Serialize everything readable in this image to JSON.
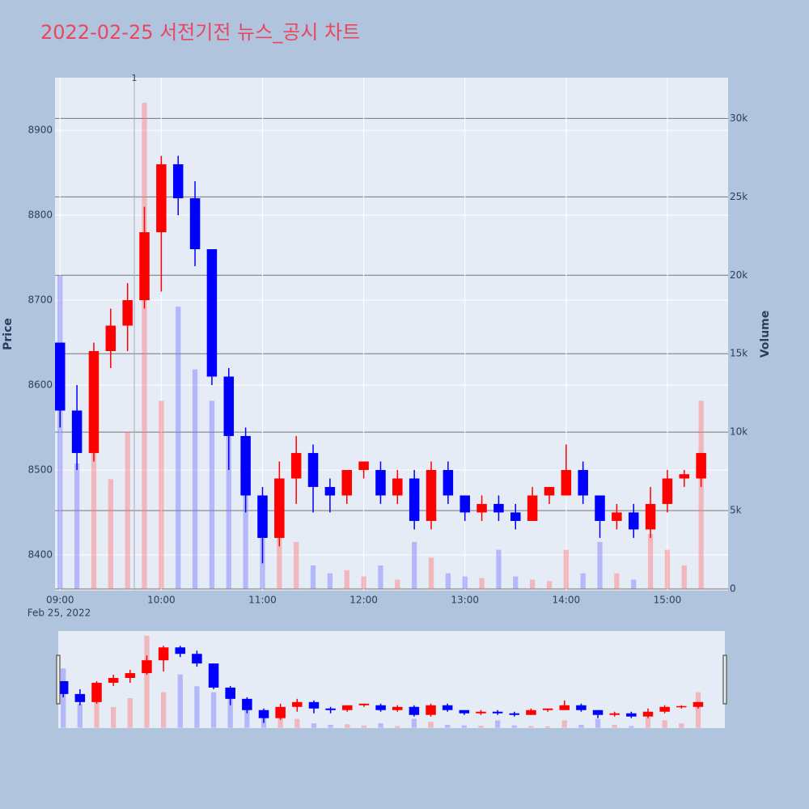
{
  "chart_data": {
    "type": "candlestick",
    "title": "2022-02-25 서전기전 뉴스_공시 차트",
    "title_color": "#e8475f",
    "x": [
      "2022-02-25 09:00",
      "2022-02-25 09:10",
      "2022-02-25 09:20",
      "2022-02-25 09:30",
      "2022-02-25 09:40",
      "2022-02-25 09:50",
      "2022-02-25 10:00",
      "2022-02-25 10:10",
      "2022-02-25 10:20",
      "2022-02-25 10:30",
      "2022-02-25 10:40",
      "2022-02-25 10:50",
      "2022-02-25 11:00",
      "2022-02-25 11:10",
      "2022-02-25 11:20",
      "2022-02-25 11:30",
      "2022-02-25 11:40",
      "2022-02-25 11:50",
      "2022-02-25 12:00",
      "2022-02-25 12:10",
      "2022-02-25 12:20",
      "2022-02-25 12:30",
      "2022-02-25 12:40",
      "2022-02-25 12:50",
      "2022-02-25 13:00",
      "2022-02-25 13:10",
      "2022-02-25 13:20",
      "2022-02-25 13:30",
      "2022-02-25 13:40",
      "2022-02-25 13:50",
      "2022-02-25 14:00",
      "2022-02-25 14:10",
      "2022-02-25 14:20",
      "2022-02-25 14:30",
      "2022-02-25 14:40",
      "2022-02-25 14:50",
      "2022-02-25 15:00",
      "2022-02-25 15:10",
      "2022-02-25 15:20"
    ],
    "open": [
      8650,
      8570,
      8520,
      8640,
      8670,
      8700,
      8780,
      8860,
      8820,
      8760,
      8610,
      8540,
      8470,
      8420,
      8490,
      8520,
      8480,
      8470,
      8500,
      8500,
      8470,
      8490,
      8440,
      8500,
      8470,
      8450,
      8460,
      8450,
      8440,
      8470,
      8470,
      8500,
      8470,
      8440,
      8450,
      8430,
      8460,
      8490,
      8490
    ],
    "high": [
      8650,
      8600,
      8650,
      8690,
      8720,
      8810,
      8870,
      8870,
      8840,
      8760,
      8620,
      8550,
      8480,
      8510,
      8540,
      8530,
      8490,
      8500,
      8510,
      8510,
      8500,
      8500,
      8510,
      8510,
      8470,
      8470,
      8470,
      8460,
      8480,
      8480,
      8530,
      8510,
      8470,
      8460,
      8460,
      8480,
      8500,
      8500,
      8520
    ],
    "low": [
      8550,
      8500,
      8510,
      8620,
      8640,
      8690,
      8710,
      8800,
      8740,
      8600,
      8500,
      8450,
      8390,
      8410,
      8460,
      8450,
      8450,
      8460,
      8490,
      8460,
      8460,
      8430,
      8430,
      8460,
      8440,
      8440,
      8440,
      8430,
      8440,
      8460,
      8470,
      8460,
      8420,
      8430,
      8420,
      8420,
      8450,
      8480,
      8480
    ],
    "close": [
      8570,
      8520,
      8640,
      8670,
      8700,
      8780,
      8860,
      8820,
      8760,
      8610,
      8540,
      8470,
      8420,
      8490,
      8520,
      8480,
      8470,
      8500,
      8510,
      8470,
      8490,
      8440,
      8500,
      8470,
      8450,
      8460,
      8450,
      8440,
      8470,
      8480,
      8500,
      8470,
      8440,
      8450,
      8430,
      8460,
      8490,
      8495,
      8520
    ],
    "volume": [
      20000,
      8000,
      9000,
      7000,
      10000,
      31000,
      12000,
      18000,
      14000,
      12000,
      11000,
      9000,
      5000,
      4000,
      3000,
      1500,
      1000,
      1200,
      800,
      1500,
      600,
      3000,
      2000,
      1000,
      800,
      700,
      2500,
      800,
      600,
      500,
      2500,
      1000,
      3000,
      1000,
      600,
      3500,
      2500,
      1500,
      12000
    ],
    "up_color": "#ff0000",
    "down_color": "#0000ff",
    "volume_up_color": "rgba(255,120,120,0.45)",
    "volume_down_color": "rgba(120,120,255,0.45)",
    "xlim": [
      "2022-02-25 08:57",
      "2022-02-25 15:36"
    ],
    "xticks": [
      {
        "value": "2022-02-25 09:00",
        "label": "09:00"
      },
      {
        "value": "2022-02-25 10:00",
        "label": "10:00"
      },
      {
        "value": "2022-02-25 11:00",
        "label": "11:00"
      },
      {
        "value": "2022-02-25 12:00",
        "label": "12:00"
      },
      {
        "value": "2022-02-25 13:00",
        "label": "13:00"
      },
      {
        "value": "2022-02-25 14:00",
        "label": "14:00"
      },
      {
        "value": "2022-02-25 15:00",
        "label": "15:00"
      }
    ],
    "x_date_label": "Feb 25, 2022",
    "ylim": [
      8358,
      8962
    ],
    "yticks": [
      8400,
      8500,
      8600,
      8700,
      8800,
      8900
    ],
    "y2lim": [
      -100,
      32600
    ],
    "y2ticks": [
      0,
      {
        "value": 5000,
        "label": "5k"
      },
      {
        "value": 10000,
        "label": "10k"
      },
      {
        "value": 15000,
        "label": "15k"
      },
      {
        "value": 20000,
        "label": "20k"
      },
      {
        "value": 25000,
        "label": "25k"
      },
      {
        "value": 30000,
        "label": "30k"
      }
    ],
    "y_label": "Price",
    "y2_label": "Volume",
    "annotations": [
      {
        "x": "2022-02-25 09:44",
        "text": "1"
      }
    ]
  }
}
